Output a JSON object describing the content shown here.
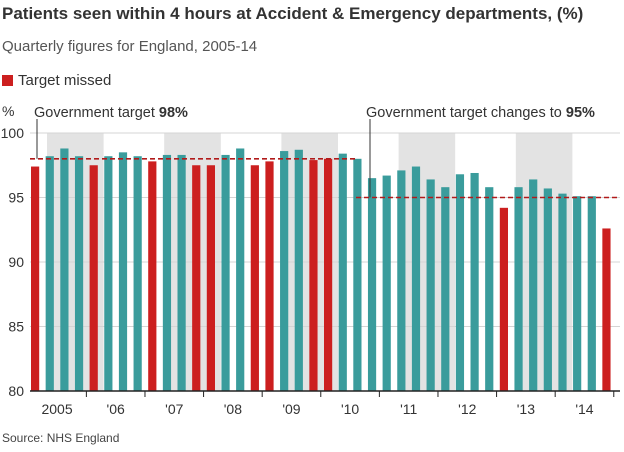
{
  "chart_data": {
    "type": "bar",
    "title": "Patients seen within 4 hours at Accident & Emergency departments, (%)",
    "subtitle": "Quarterly figures for England, 2005-14",
    "ylabel": "%",
    "ylim": [
      80,
      100
    ],
    "yticks": [
      80,
      85,
      90,
      95,
      100
    ],
    "grid": true,
    "legend": {
      "label": "Target missed",
      "position": "top-left"
    },
    "year_labels": [
      "2005",
      "'06",
      "'07",
      "'08",
      "'09",
      "'10",
      "'11",
      "'12",
      "'13",
      "'14"
    ],
    "values": [
      97.4,
      98.2,
      98.8,
      98.2,
      97.5,
      98.2,
      98.5,
      98.2,
      97.8,
      98.3,
      98.3,
      97.5,
      97.5,
      98.3,
      98.8,
      97.5,
      97.8,
      98.6,
      98.7,
      97.9,
      98.0,
      98.4,
      98.0,
      96.5,
      96.7,
      97.1,
      97.4,
      96.4,
      95.8,
      96.8,
      96.9,
      95.8,
      94.2,
      95.8,
      96.4,
      95.7,
      95.3,
      95.1,
      95.1,
      92.6
    ],
    "missed": [
      true,
      false,
      false,
      false,
      true,
      false,
      false,
      false,
      true,
      false,
      false,
      true,
      true,
      false,
      false,
      true,
      true,
      false,
      false,
      true,
      true,
      false,
      false,
      false,
      false,
      false,
      false,
      false,
      false,
      false,
      false,
      false,
      true,
      false,
      false,
      false,
      false,
      false,
      false,
      true
    ],
    "annotations": [
      {
        "text_plain": "Government target ",
        "text_bold": "98%",
        "value": 98
      },
      {
        "text_plain": "Government target changes to ",
        "text_bold": "95%",
        "value": 95
      }
    ],
    "colors": {
      "met": "#3a9c9c",
      "missed": "#cc1f1f",
      "target_line": "#b11a1a",
      "band": "#e3e3e3",
      "grid": "#d4d4d4",
      "axis": "#222222"
    },
    "source": "Source: NHS England"
  }
}
